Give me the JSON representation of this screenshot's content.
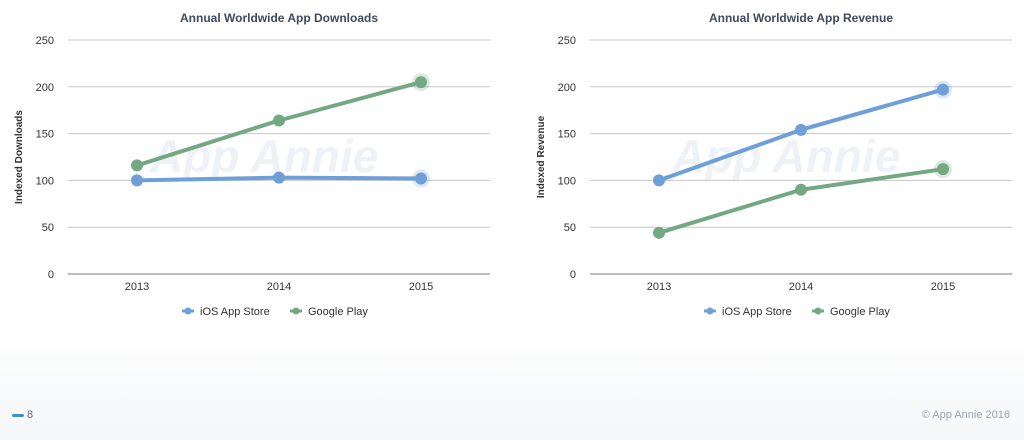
{
  "colors": {
    "ios": "#6e9fd8",
    "google": "#74a883"
  },
  "chart_data": [
    {
      "type": "line",
      "title": "Annual Worldwide App Downloads",
      "xlabel": "",
      "ylabel": "Indexed Downloads",
      "ylim": [
        0,
        250
      ],
      "yticks": [
        0,
        50,
        100,
        150,
        200,
        250
      ],
      "categories": [
        "2013",
        "2014",
        "2015"
      ],
      "series": [
        {
          "name": "iOS App Store",
          "values": [
            100,
            103,
            102
          ]
        },
        {
          "name": "Google Play",
          "values": [
            116,
            164,
            205
          ]
        }
      ],
      "watermark": "App Annie",
      "grid": true,
      "legend": "bottom"
    },
    {
      "type": "line",
      "title": "Annual Worldwide App Revenue",
      "xlabel": "",
      "ylabel": "Indexed Revenue",
      "ylim": [
        0,
        250
      ],
      "yticks": [
        0,
        50,
        100,
        150,
        200,
        250
      ],
      "categories": [
        "2013",
        "2014",
        "2015"
      ],
      "series": [
        {
          "name": "iOS App Store",
          "values": [
            100,
            154,
            197
          ]
        },
        {
          "name": "Google Play",
          "values": [
            44,
            90,
            112
          ]
        }
      ],
      "watermark": "App Annie",
      "grid": true,
      "legend": "bottom"
    }
  ],
  "footer": {
    "page_number": "8",
    "copyright": "© App Annie 2016"
  }
}
